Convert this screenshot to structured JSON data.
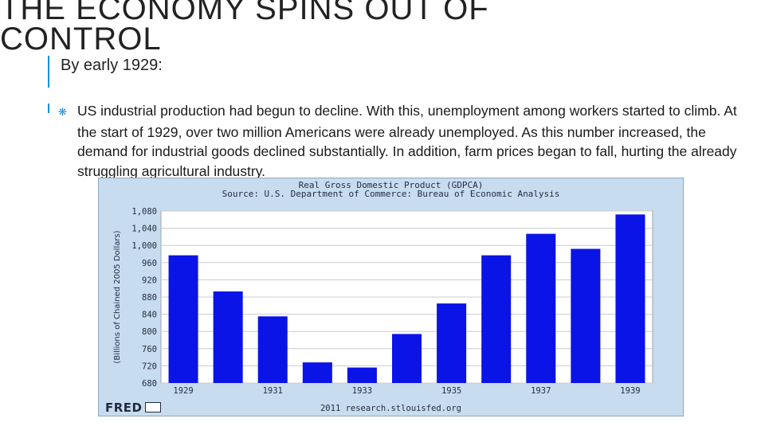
{
  "slide": {
    "title": "THE ECONOMY SPINS OUT OF CONTROL",
    "subhead": "By early 1929:",
    "bullet": "US industrial production had begun to decline.  With this, unemployment among workers started to climb.  At the start of 1929, over two million Americans were already unemployed. As this number increased, the demand for industrial goods declined substantially.  In addition, farm prices began to fall, hurting the already struggling agricultural industry.",
    "bullet_icon": "asterisk-icon",
    "accent_color": "#1c8fd6"
  },
  "chart_frame": {
    "brand": "FRED",
    "footer": "2011 research.stlouisfed.org",
    "background_color": "#c8dcef"
  },
  "chart_data": {
    "type": "bar",
    "title": "Real Gross Domestic Product (GDPCA)",
    "subtitle": "Source: U.S. Department of Commerce: Bureau of Economic Analysis",
    "xlabel": "",
    "ylabel": "(Billions of Chained 2005 Dollars)",
    "categories": [
      "1929",
      "1930",
      "1931",
      "1932",
      "1933",
      "1934",
      "1935",
      "1936",
      "1937",
      "1938",
      "1939"
    ],
    "x_tick_labels": [
      "1929",
      "1931",
      "1933",
      "1935",
      "1937",
      "1939"
    ],
    "values": [
      977,
      893,
      835,
      728,
      716,
      794,
      865,
      977,
      1027,
      992,
      1072
    ],
    "ylim": [
      680,
      1080
    ],
    "y_ticks": [
      "680",
      "720",
      "760",
      "800",
      "840",
      "880",
      "920",
      "960",
      "1,000",
      "1,040",
      "1,080"
    ],
    "y_tick_values": [
      680,
      720,
      760,
      800,
      840,
      880,
      920,
      960,
      1000,
      1040,
      1080
    ],
    "bar_color": "#0a14e6",
    "grid": true
  }
}
